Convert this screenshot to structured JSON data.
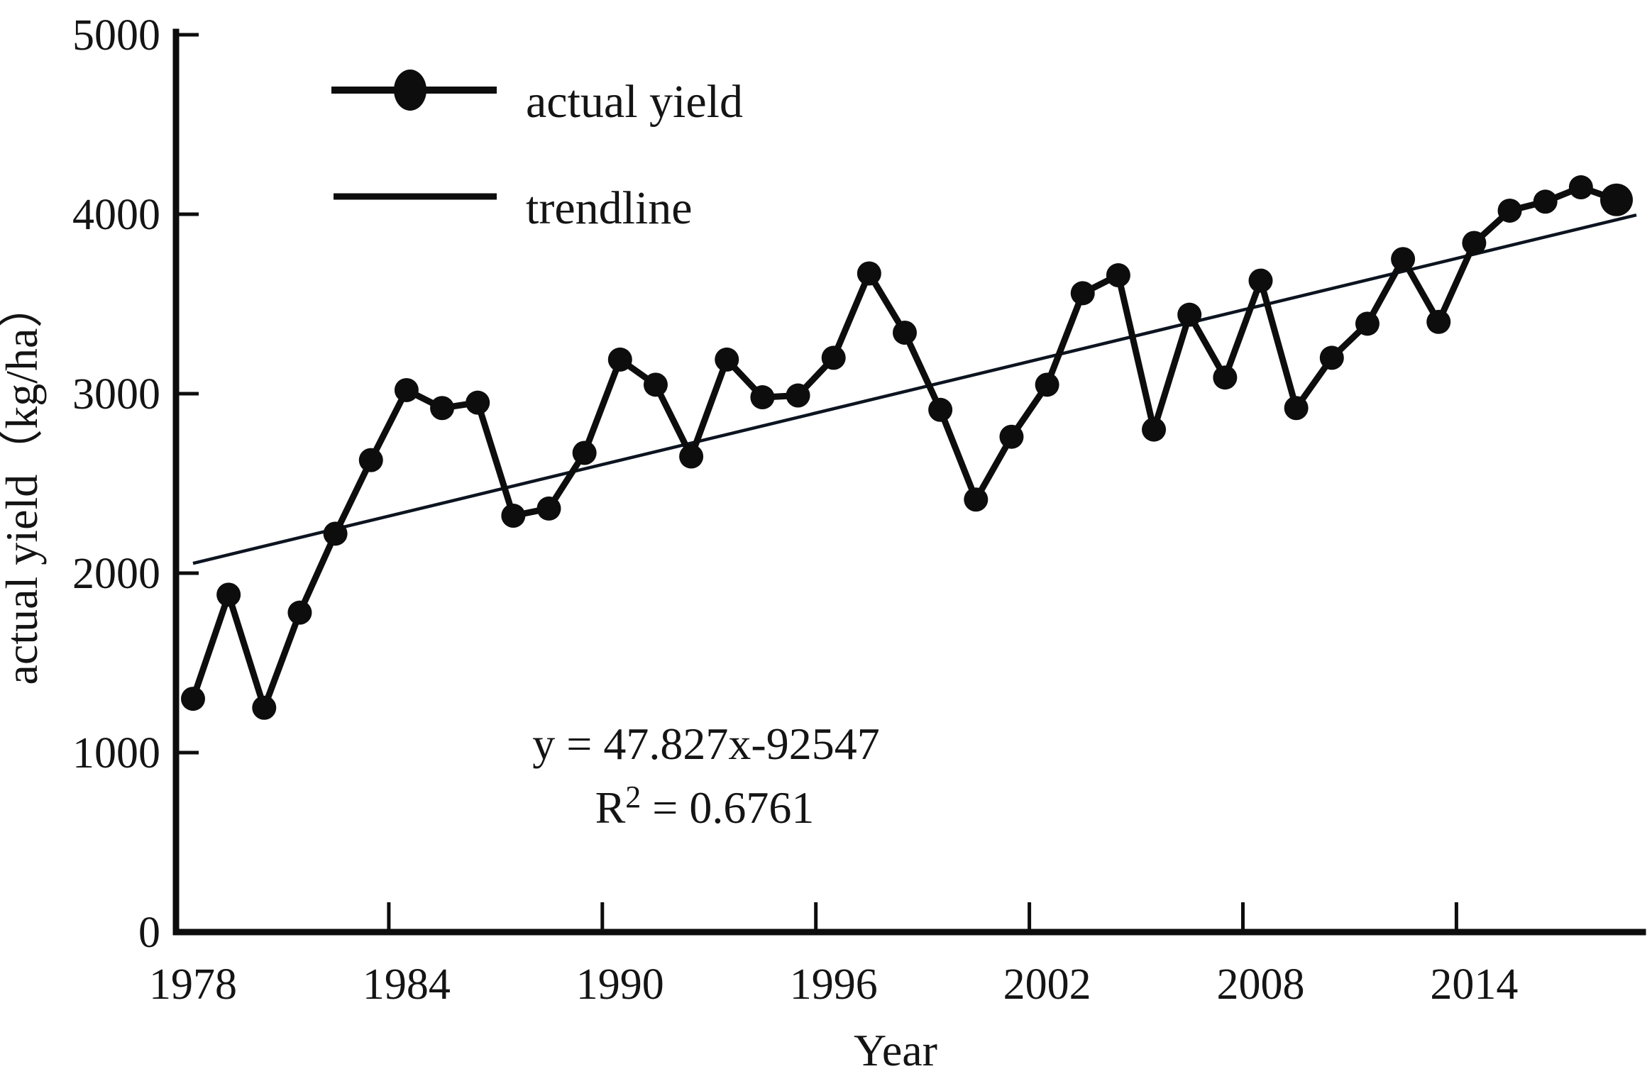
{
  "figure": {
    "background": "#ffffff",
    "ink_color": "#0d0d0d",
    "trendline_color": "#0c1420",
    "y_axis": {
      "label": "actual yield（kg/ha）",
      "tick_labels": [
        "0",
        "1000",
        "2000",
        "3000",
        "4000",
        "5000"
      ]
    },
    "x_axis": {
      "label": "Year",
      "tick_labels": [
        "1978",
        "1984",
        "1990",
        "1996",
        "2002",
        "2008",
        "2014"
      ]
    },
    "legend": {
      "items": [
        {
          "label": "actual yield",
          "sample": "line-with-circle-marker"
        },
        {
          "label": "trendline",
          "sample": "plain-line"
        }
      ]
    },
    "annotation": {
      "line1": "y = 47.827x-92547",
      "line2_base": "R",
      "line2_sup": "2",
      "line2_rest": " = 0.6761"
    }
  },
  "chart_data": {
    "type": "line",
    "title": "",
    "xlabel": "Year",
    "ylabel": "actual yield（kg/ha）",
    "x": [
      1978,
      1979,
      1980,
      1981,
      1982,
      1983,
      1984,
      1985,
      1986,
      1987,
      1988,
      1989,
      1990,
      1991,
      1992,
      1993,
      1994,
      1995,
      1996,
      1997,
      1998,
      1999,
      2000,
      2001,
      2002,
      2003,
      2004,
      2005,
      2006,
      2007,
      2008,
      2009,
      2010,
      2011,
      2012,
      2013,
      2014,
      2015,
      2016,
      2017,
      2018
    ],
    "series": [
      {
        "name": "actual yield",
        "marker": "filled-circle",
        "values": [
          1300,
          1880,
          1250,
          1780,
          2220,
          2630,
          3020,
          2920,
          2950,
          2320,
          2360,
          2670,
          3190,
          3050,
          2650,
          3190,
          2980,
          2990,
          3200,
          3670,
          3340,
          2910,
          2410,
          2760,
          3050,
          3560,
          3660,
          2800,
          3440,
          3090,
          3630,
          2920,
          3200,
          3390,
          3750,
          3400,
          3840,
          4020,
          4070,
          4150,
          4080
        ]
      },
      {
        "name": "trendline",
        "equation": "y = 47.827x-92547",
        "slope": 47.827,
        "intercept": -92547,
        "r_squared": 0.6761,
        "x_start": 1978,
        "x_end": 2018
      }
    ],
    "ylim": [
      0,
      5000
    ],
    "yticks": [
      0,
      1000,
      2000,
      3000,
      4000,
      5000
    ],
    "xticks": [
      1978,
      1984,
      1990,
      1996,
      2002,
      2008,
      2014
    ],
    "grid": false,
    "legend_position": "top-left"
  }
}
